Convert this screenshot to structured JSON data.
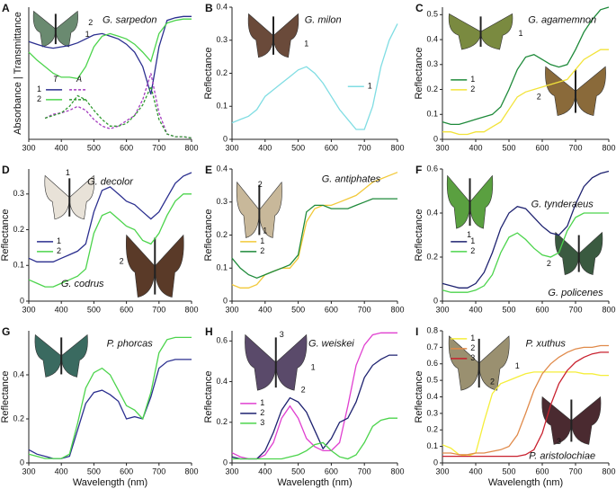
{
  "chart_data": [
    {
      "panel": "A",
      "type": "line",
      "title": "G. sarpedon",
      "ylabel": "Absorbance | Transmittance",
      "x": [
        300,
        325,
        350,
        375,
        400,
        425,
        450,
        475,
        500,
        525,
        550,
        575,
        600,
        625,
        650,
        675,
        700,
        725,
        750,
        775,
        800
      ],
      "xlim": [
        300,
        800
      ],
      "xticks": [
        300,
        400,
        500,
        600,
        700,
        800
      ],
      "ylim": [
        0,
        1
      ],
      "legend": "center left",
      "series": [
        {
          "name": "1",
          "group": "T",
          "color": "#2b2f8f",
          "dash": false,
          "values": [
            0.74,
            0.72,
            0.7,
            0.69,
            0.7,
            0.71,
            0.73,
            0.76,
            0.79,
            0.8,
            0.78,
            0.76,
            0.72,
            0.66,
            0.55,
            0.34,
            0.7,
            0.9,
            0.92,
            0.93,
            0.93
          ]
        },
        {
          "name": "2",
          "group": "T",
          "color": "#4cd44c",
          "dash": false,
          "values": [
            0.66,
            0.6,
            0.55,
            0.5,
            0.47,
            0.47,
            0.46,
            0.55,
            0.7,
            0.78,
            0.8,
            0.78,
            0.76,
            0.72,
            0.66,
            0.59,
            0.8,
            0.88,
            0.9,
            0.91,
            0.91
          ]
        },
        {
          "name": "1",
          "group": "A",
          "color": "#a43bbf",
          "dash": true,
          "values": [
            null,
            null,
            0.16,
            0.19,
            0.2,
            0.22,
            0.25,
            0.22,
            0.15,
            0.1,
            0.08,
            0.1,
            0.14,
            0.18,
            0.3,
            0.5,
            0.2,
            0.04,
            0.02,
            0.02,
            0.01
          ]
        },
        {
          "name": "2",
          "group": "A",
          "color": "#2f9a2f",
          "dash": true,
          "values": [
            null,
            null,
            0.16,
            0.18,
            0.2,
            0.25,
            0.33,
            0.3,
            0.22,
            0.15,
            0.1,
            0.1,
            0.12,
            0.18,
            0.26,
            0.4,
            0.15,
            0.04,
            0.02,
            0.02,
            0.01
          ]
        }
      ],
      "annotations": [
        "2",
        "1"
      ]
    },
    {
      "panel": "B",
      "type": "line",
      "title": "G. milon",
      "ylabel": "Reflectance",
      "x": [
        300,
        325,
        350,
        375,
        400,
        425,
        450,
        475,
        500,
        525,
        550,
        575,
        600,
        625,
        650,
        675,
        700,
        725,
        750,
        775,
        800
      ],
      "xlim": [
        300,
        800
      ],
      "xticks": [
        300,
        400,
        500,
        600,
        700,
        800
      ],
      "ylim": [
        0,
        0.4
      ],
      "yticks": [
        0,
        0.1,
        0.2,
        0.3,
        0.4
      ],
      "legend": "lower right",
      "series": [
        {
          "name": "1",
          "color": "#80dde3",
          "values": [
            0.05,
            0.06,
            0.07,
            0.09,
            0.13,
            0.15,
            0.17,
            0.19,
            0.21,
            0.22,
            0.2,
            0.17,
            0.13,
            0.09,
            0.06,
            0.03,
            0.03,
            0.1,
            0.22,
            0.3,
            0.35
          ]
        }
      ],
      "annotations": [
        "1"
      ]
    },
    {
      "panel": "C",
      "type": "line",
      "title": "G. agamemnon",
      "ylabel": "Reflectance",
      "x": [
        300,
        325,
        350,
        375,
        400,
        425,
        450,
        475,
        500,
        525,
        550,
        575,
        600,
        625,
        650,
        675,
        700,
        725,
        750,
        775,
        800
      ],
      "xlim": [
        300,
        800
      ],
      "xticks": [
        300,
        400,
        500,
        600,
        700,
        800
      ],
      "ylim": [
        0,
        0.53
      ],
      "yticks": [
        0,
        0.1,
        0.2,
        0.3,
        0.4,
        0.5
      ],
      "legend": "center left",
      "series": [
        {
          "name": "1",
          "color": "#1e8a3a",
          "values": [
            0.07,
            0.06,
            0.06,
            0.07,
            0.08,
            0.09,
            0.1,
            0.13,
            0.2,
            0.28,
            0.33,
            0.34,
            0.32,
            0.3,
            0.29,
            0.3,
            0.36,
            0.43,
            0.48,
            0.52,
            0.53
          ]
        },
        {
          "name": "2",
          "color": "#f2e33a",
          "values": [
            0.03,
            0.03,
            0.02,
            0.02,
            0.03,
            0.03,
            0.05,
            0.07,
            0.12,
            0.17,
            0.19,
            0.2,
            0.21,
            0.22,
            0.23,
            0.24,
            0.28,
            0.32,
            0.34,
            0.36,
            0.36
          ]
        }
      ],
      "annotations": [
        "1",
        "2"
      ]
    },
    {
      "panel": "D",
      "type": "line",
      "title": "G. decolor",
      "ylabel": "Reflectance",
      "x": [
        300,
        325,
        350,
        375,
        400,
        425,
        450,
        475,
        500,
        525,
        550,
        575,
        600,
        625,
        650,
        675,
        700,
        725,
        750,
        775,
        800
      ],
      "xlim": [
        300,
        800
      ],
      "xticks": [
        300,
        400,
        500,
        600,
        700,
        800
      ],
      "ylim": [
        0,
        0.37
      ],
      "yticks": [
        0,
        0.1,
        0.2,
        0.3
      ],
      "legend": "center left",
      "series": [
        {
          "name": "1",
          "color": "#2b2f8f",
          "values": [
            0.12,
            0.11,
            0.11,
            0.11,
            0.12,
            0.13,
            0.14,
            0.16,
            0.25,
            0.31,
            0.32,
            0.3,
            0.28,
            0.27,
            0.25,
            0.23,
            0.25,
            0.29,
            0.33,
            0.35,
            0.36
          ]
        },
        {
          "name": "2",
          "color": "#4cd44c",
          "values": [
            0.06,
            0.05,
            0.04,
            0.04,
            0.05,
            0.06,
            0.07,
            0.09,
            0.19,
            0.24,
            0.25,
            0.23,
            0.21,
            0.2,
            0.17,
            0.16,
            0.19,
            0.24,
            0.28,
            0.3,
            0.3
          ]
        }
      ],
      "annotations": [
        "1",
        "2",
        "G. codrus"
      ]
    },
    {
      "panel": "E",
      "type": "line",
      "title": "G. antiphates",
      "ylabel": "Reflectance",
      "x": [
        300,
        325,
        350,
        375,
        400,
        425,
        450,
        475,
        500,
        525,
        550,
        575,
        600,
        625,
        650,
        675,
        700,
        725,
        750,
        775,
        800
      ],
      "xlim": [
        300,
        800
      ],
      "xticks": [
        300,
        400,
        500,
        600,
        700,
        800
      ],
      "ylim": [
        0,
        0.4
      ],
      "yticks": [
        0,
        0.1,
        0.2,
        0.3,
        0.4
      ],
      "legend": "center left",
      "series": [
        {
          "name": "1",
          "color": "#f2c93a",
          "values": [
            0.05,
            0.04,
            0.04,
            0.05,
            0.08,
            0.09,
            0.1,
            0.1,
            0.13,
            0.24,
            0.28,
            0.29,
            0.29,
            0.3,
            0.31,
            0.32,
            0.34,
            0.36,
            0.37,
            0.38,
            0.39
          ]
        },
        {
          "name": "2",
          "color": "#1e8a3a",
          "values": [
            0.13,
            0.1,
            0.08,
            0.07,
            0.08,
            0.09,
            0.1,
            0.11,
            0.14,
            0.27,
            0.29,
            0.29,
            0.28,
            0.28,
            0.28,
            0.29,
            0.3,
            0.31,
            0.31,
            0.31,
            0.31
          ]
        }
      ],
      "annotations": [
        "2",
        "1"
      ]
    },
    {
      "panel": "F",
      "type": "line",
      "title": "G. tynderaeus",
      "ylabel": "Reflectance",
      "x": [
        300,
        325,
        350,
        375,
        400,
        425,
        450,
        475,
        500,
        525,
        550,
        575,
        600,
        625,
        650,
        675,
        700,
        725,
        750,
        775,
        800
      ],
      "xlim": [
        300,
        800
      ],
      "xticks": [
        300,
        400,
        500,
        600,
        700,
        800
      ],
      "ylim": [
        0,
        0.6
      ],
      "yticks": [
        0,
        0.2,
        0.4,
        0.6
      ],
      "legend": "center left",
      "series": [
        {
          "name": "1",
          "color": "#1e2270",
          "values": [
            0.08,
            0.07,
            0.06,
            0.06,
            0.08,
            0.13,
            0.22,
            0.33,
            0.4,
            0.43,
            0.42,
            0.38,
            0.34,
            0.31,
            0.3,
            0.34,
            0.44,
            0.52,
            0.56,
            0.58,
            0.59
          ]
        },
        {
          "name": "2",
          "color": "#4cd44c",
          "values": [
            0.05,
            0.04,
            0.04,
            0.04,
            0.05,
            0.07,
            0.12,
            0.22,
            0.29,
            0.31,
            0.28,
            0.24,
            0.21,
            0.2,
            0.22,
            0.32,
            0.38,
            0.4,
            0.4,
            0.4,
            0.4
          ]
        }
      ],
      "annotations": [
        "1",
        "2",
        "G. policenes"
      ]
    },
    {
      "panel": "G",
      "type": "line",
      "title": "P. phorcas",
      "ylabel": "Reflectance",
      "xlabel": "Wavelength (nm)",
      "x": [
        300,
        325,
        350,
        375,
        400,
        425,
        450,
        475,
        500,
        525,
        550,
        575,
        600,
        625,
        650,
        675,
        700,
        725,
        750,
        775,
        800
      ],
      "xlim": [
        300,
        800
      ],
      "xticks": [
        300,
        400,
        500,
        600,
        700,
        800
      ],
      "ylim": [
        0,
        0.6
      ],
      "yticks": [
        0,
        0.2,
        0.4
      ],
      "series": [
        {
          "name": "1",
          "color": "#2b2f8f",
          "values": [
            0.06,
            0.04,
            0.03,
            0.02,
            0.02,
            0.03,
            0.15,
            0.27,
            0.32,
            0.33,
            0.31,
            0.28,
            0.2,
            0.21,
            0.2,
            0.3,
            0.43,
            0.46,
            0.47,
            0.47,
            0.47
          ]
        },
        {
          "name": "2",
          "color": "#4cd44c",
          "values": [
            0.04,
            0.03,
            0.02,
            0.02,
            0.02,
            0.04,
            0.18,
            0.34,
            0.41,
            0.43,
            0.4,
            0.33,
            0.26,
            0.24,
            0.2,
            0.32,
            0.5,
            0.56,
            0.57,
            0.57,
            0.57
          ]
        }
      ],
      "annotations": []
    },
    {
      "panel": "H",
      "type": "line",
      "title": "G. weiskei",
      "ylabel": "Reflectance",
      "xlabel": "Wavelength (nm)",
      "x": [
        300,
        325,
        350,
        375,
        400,
        425,
        450,
        475,
        500,
        525,
        550,
        575,
        600,
        625,
        650,
        675,
        700,
        725,
        750,
        775,
        800
      ],
      "xlim": [
        300,
        800
      ],
      "xticks": [
        300,
        400,
        500,
        600,
        700,
        800
      ],
      "ylim": [
        0,
        0.65
      ],
      "yticks": [
        0,
        0.2,
        0.4,
        0.6
      ],
      "legend": "center left",
      "series": [
        {
          "name": "1",
          "color": "#e040d0",
          "values": [
            0.05,
            0.03,
            0.02,
            0.02,
            0.04,
            0.1,
            0.22,
            0.28,
            0.22,
            0.12,
            0.08,
            0.06,
            0.06,
            0.1,
            0.28,
            0.48,
            0.58,
            0.63,
            0.64,
            0.64,
            0.64
          ]
        },
        {
          "name": "2",
          "color": "#1e2270",
          "values": [
            0.03,
            0.02,
            0.02,
            0.02,
            0.06,
            0.15,
            0.26,
            0.32,
            0.3,
            0.25,
            0.16,
            0.07,
            0.12,
            0.2,
            0.22,
            0.3,
            0.42,
            0.48,
            0.51,
            0.53,
            0.53
          ]
        },
        {
          "name": "3",
          "color": "#4cd44c",
          "values": [
            0.02,
            0.02,
            0.02,
            0.02,
            0.02,
            0.02,
            0.02,
            0.03,
            0.04,
            0.06,
            0.09,
            0.1,
            0.06,
            0.03,
            0.02,
            0.04,
            0.1,
            0.18,
            0.21,
            0.22,
            0.22
          ]
        }
      ],
      "annotations": [
        "3",
        "1",
        "2"
      ]
    },
    {
      "panel": "I",
      "type": "line",
      "title": "P. xuthus",
      "ylabel": "Reflectance",
      "xlabel": "Wavelength (nm)",
      "x": [
        300,
        325,
        350,
        375,
        400,
        425,
        450,
        475,
        500,
        525,
        550,
        575,
        600,
        625,
        650,
        675,
        700,
        725,
        750,
        775,
        800
      ],
      "xlim": [
        300,
        800
      ],
      "xticks": [
        300,
        400,
        500,
        600,
        700,
        800
      ],
      "ylim": [
        0,
        0.8
      ],
      "yticks": [
        0,
        0.1,
        0.2,
        0.3,
        0.4,
        0.5,
        0.6,
        0.7,
        0.8
      ],
      "legend": "upper left",
      "series": [
        {
          "name": "1",
          "color": "#f5ee3a",
          "values": [
            0.11,
            0.09,
            0.05,
            0.04,
            0.06,
            0.25,
            0.42,
            0.48,
            0.5,
            0.52,
            0.54,
            0.55,
            0.55,
            0.55,
            0.55,
            0.55,
            0.55,
            0.54,
            0.54,
            0.53,
            0.53
          ]
        },
        {
          "name": "2",
          "color": "#e08a4a",
          "values": [
            0.06,
            0.06,
            0.05,
            0.05,
            0.06,
            0.06,
            0.07,
            0.08,
            0.1,
            0.17,
            0.3,
            0.44,
            0.54,
            0.6,
            0.64,
            0.67,
            0.69,
            0.7,
            0.7,
            0.71,
            0.71
          ]
        },
        {
          "name": "3",
          "color": "#c8202e",
          "values": [
            0.04,
            0.04,
            0.04,
            0.04,
            0.04,
            0.04,
            0.04,
            0.04,
            0.04,
            0.04,
            0.05,
            0.08,
            0.18,
            0.35,
            0.48,
            0.56,
            0.61,
            0.64,
            0.66,
            0.67,
            0.67
          ]
        }
      ],
      "annotations": [
        "1",
        "2",
        "3",
        "P. aristolochiae"
      ]
    }
  ]
}
